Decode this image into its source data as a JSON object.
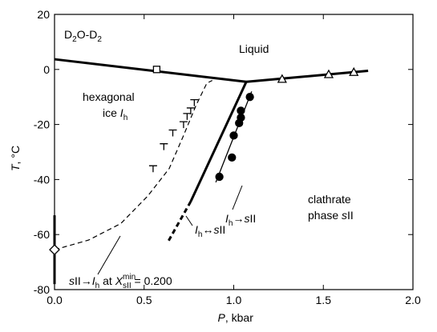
{
  "chart_data": {
    "type": "line",
    "x_label": {
      "segments": [
        {
          "text": "P",
          "italic": true
        },
        {
          "text": ", kbar"
        }
      ]
    },
    "y_label": {
      "segments": [
        {
          "text": "T",
          "italic": true
        },
        {
          "text": ", °C"
        }
      ]
    },
    "xlim": [
      0,
      2
    ],
    "ylim": [
      -80,
      20
    ],
    "xticks": [
      {
        "value": 0,
        "label": "0.0"
      },
      0.5,
      {
        "value": 1,
        "label": "1.0"
      },
      1.5,
      {
        "value": 2,
        "label": "2.0"
      }
    ],
    "yticks": [
      -80,
      -60,
      -40,
      -20,
      0,
      20
    ],
    "color": "#000000",
    "series": [
      {
        "x": [
          0,
          1.07
        ],
        "values": [
          3.7,
          -4.5
        ],
        "line": "thick"
      },
      {
        "x": [
          1.07,
          1.75
        ],
        "values": [
          -4.5,
          -0.5
        ],
        "line": "thick"
      },
      {
        "x": [
          1.07,
          0.76
        ],
        "values": [
          -4.5,
          -48
        ],
        "line": "thick"
      },
      {
        "x": [
          0.76,
          0.63
        ],
        "values": [
          -48,
          -63
        ],
        "line": "thick-dashed"
      },
      {
        "x": [
          0,
          0.19,
          0.37,
          0.52,
          0.64,
          0.72,
          0.79,
          0.85,
          0.88
        ],
        "values": [
          -65.5,
          -62,
          -56,
          -46,
          -36,
          -24,
          -13,
          -5,
          -4
        ],
        "line": "dashed"
      },
      {
        "x": [
          0.9,
          1.1
        ],
        "values": [
          -41,
          -8
        ],
        "line": "thin"
      },
      {
        "x": [
          0.57
        ],
        "values": [
          0
        ],
        "marker": "square"
      },
      {
        "x": [
          1.27,
          1.53,
          1.67
        ],
        "values": [
          -3.5,
          -1.8,
          -1
        ],
        "marker": "triangle"
      },
      {
        "x": [
          1.09,
          1.04,
          1.04,
          1.03,
          1.0,
          0.99,
          0.92
        ],
        "values": [
          -10,
          -15,
          -17.5,
          -19.5,
          -24,
          -32,
          -39
        ],
        "marker": "circle"
      },
      {
        "x": [
          0.78,
          0.76,
          0.74,
          0.72,
          0.66,
          0.61,
          0.55
        ],
        "values": [
          -11,
          -14,
          -16,
          -19,
          -22,
          -27,
          -35
        ],
        "marker": "tee"
      },
      {
        "x": [
          0
        ],
        "values": [
          -65.5
        ],
        "errors": [
          12.5
        ],
        "marker": "diamond"
      }
    ],
    "annotations": [
      {
        "segments": [
          {
            "text": "D"
          },
          {
            "text": "2",
            "pos": "sub"
          },
          {
            "text": "O-D"
          },
          {
            "text": "2",
            "pos": "sub"
          }
        ]
      },
      {
        "segments": [
          {
            "text": "Liquid"
          }
        ]
      },
      {
        "segments": [
          {
            "text": "hexagonal"
          }
        ]
      },
      {
        "segments": [
          {
            "text": "ice "
          },
          {
            "text": "I",
            "italic": true
          },
          {
            "text": "h",
            "pos": "sub"
          }
        ]
      },
      {
        "segments": [
          {
            "text": "clathrate"
          }
        ]
      },
      {
        "segments": [
          {
            "text": "phase "
          },
          {
            "text": "s",
            "italic": true
          },
          {
            "text": "II"
          }
        ]
      },
      {
        "segments": [
          {
            "text": "I",
            "italic": true
          },
          {
            "text": "h",
            "pos": "sub"
          },
          {
            "text": "→"
          },
          {
            "text": "s",
            "italic": true
          },
          {
            "text": "II"
          }
        ]
      },
      {
        "segments": [
          {
            "text": "I",
            "italic": true
          },
          {
            "text": "h",
            "pos": "sub"
          },
          {
            "text": "↔"
          },
          {
            "text": "s",
            "italic": true
          },
          {
            "text": "II"
          }
        ]
      },
      {
        "segments": [
          {
            "text": "s",
            "italic": true
          },
          {
            "text": "II→"
          },
          {
            "text": "I",
            "italic": true
          },
          {
            "text": "h",
            "pos": "sub"
          },
          {
            "text": " at "
          },
          {
            "text": "X",
            "italic": true
          },
          {
            "text": "min",
            "pos": "sup"
          },
          {
            "text": "sII",
            "pos": "sub"
          },
          {
            "text": " = 0.200"
          }
        ]
      }
    ]
  }
}
